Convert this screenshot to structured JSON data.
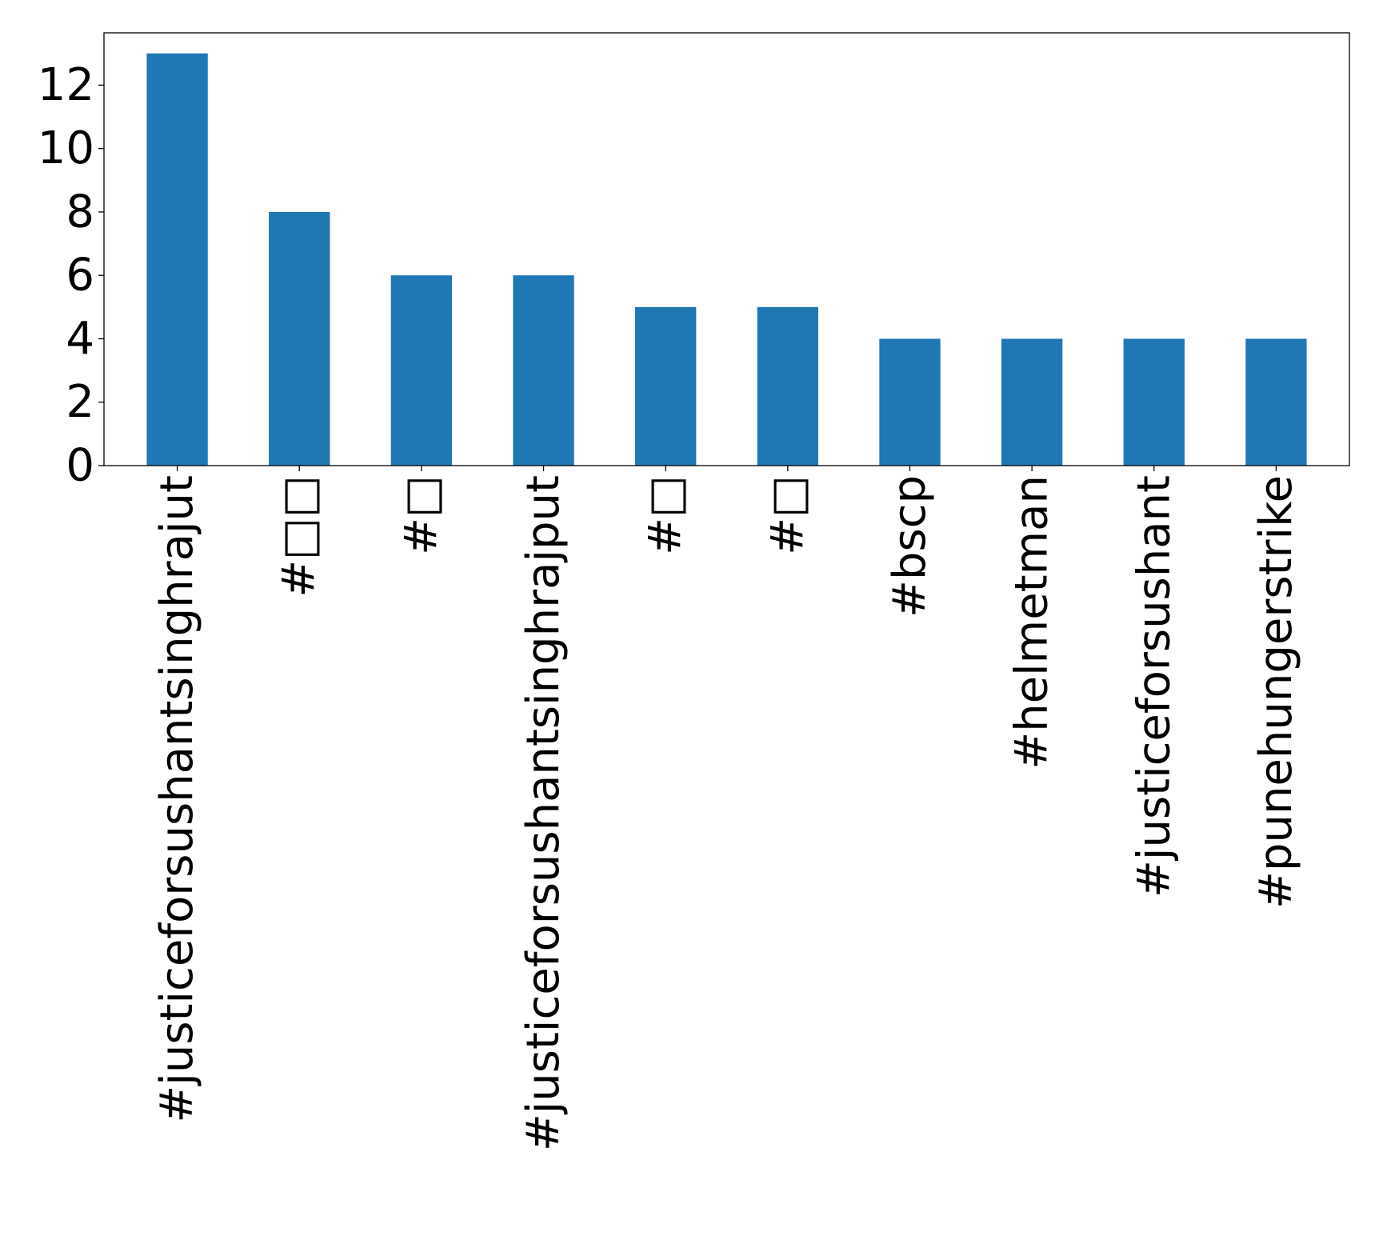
{
  "chart_data": {
    "type": "bar",
    "title": "",
    "xlabel": "",
    "ylabel": "",
    "categories": [
      "#justiceforsushantsinghrajut",
      "#□□",
      "#□",
      "#justiceforsushantsinghrajput",
      "#□",
      "#□",
      "#bscp",
      "#helmetman",
      "#justiceforsushant",
      "#punehungerstrike"
    ],
    "values": [
      13,
      8,
      6,
      6,
      5,
      5,
      4,
      4,
      4,
      4
    ],
    "ylim": [
      0,
      13.65
    ],
    "yticks": [
      0,
      2,
      4,
      6,
      8,
      10,
      12
    ],
    "grid": false,
    "legend": "none",
    "colors": {
      "bar": "#1f77b4",
      "axis": "#000000",
      "background": "#ffffff"
    }
  }
}
